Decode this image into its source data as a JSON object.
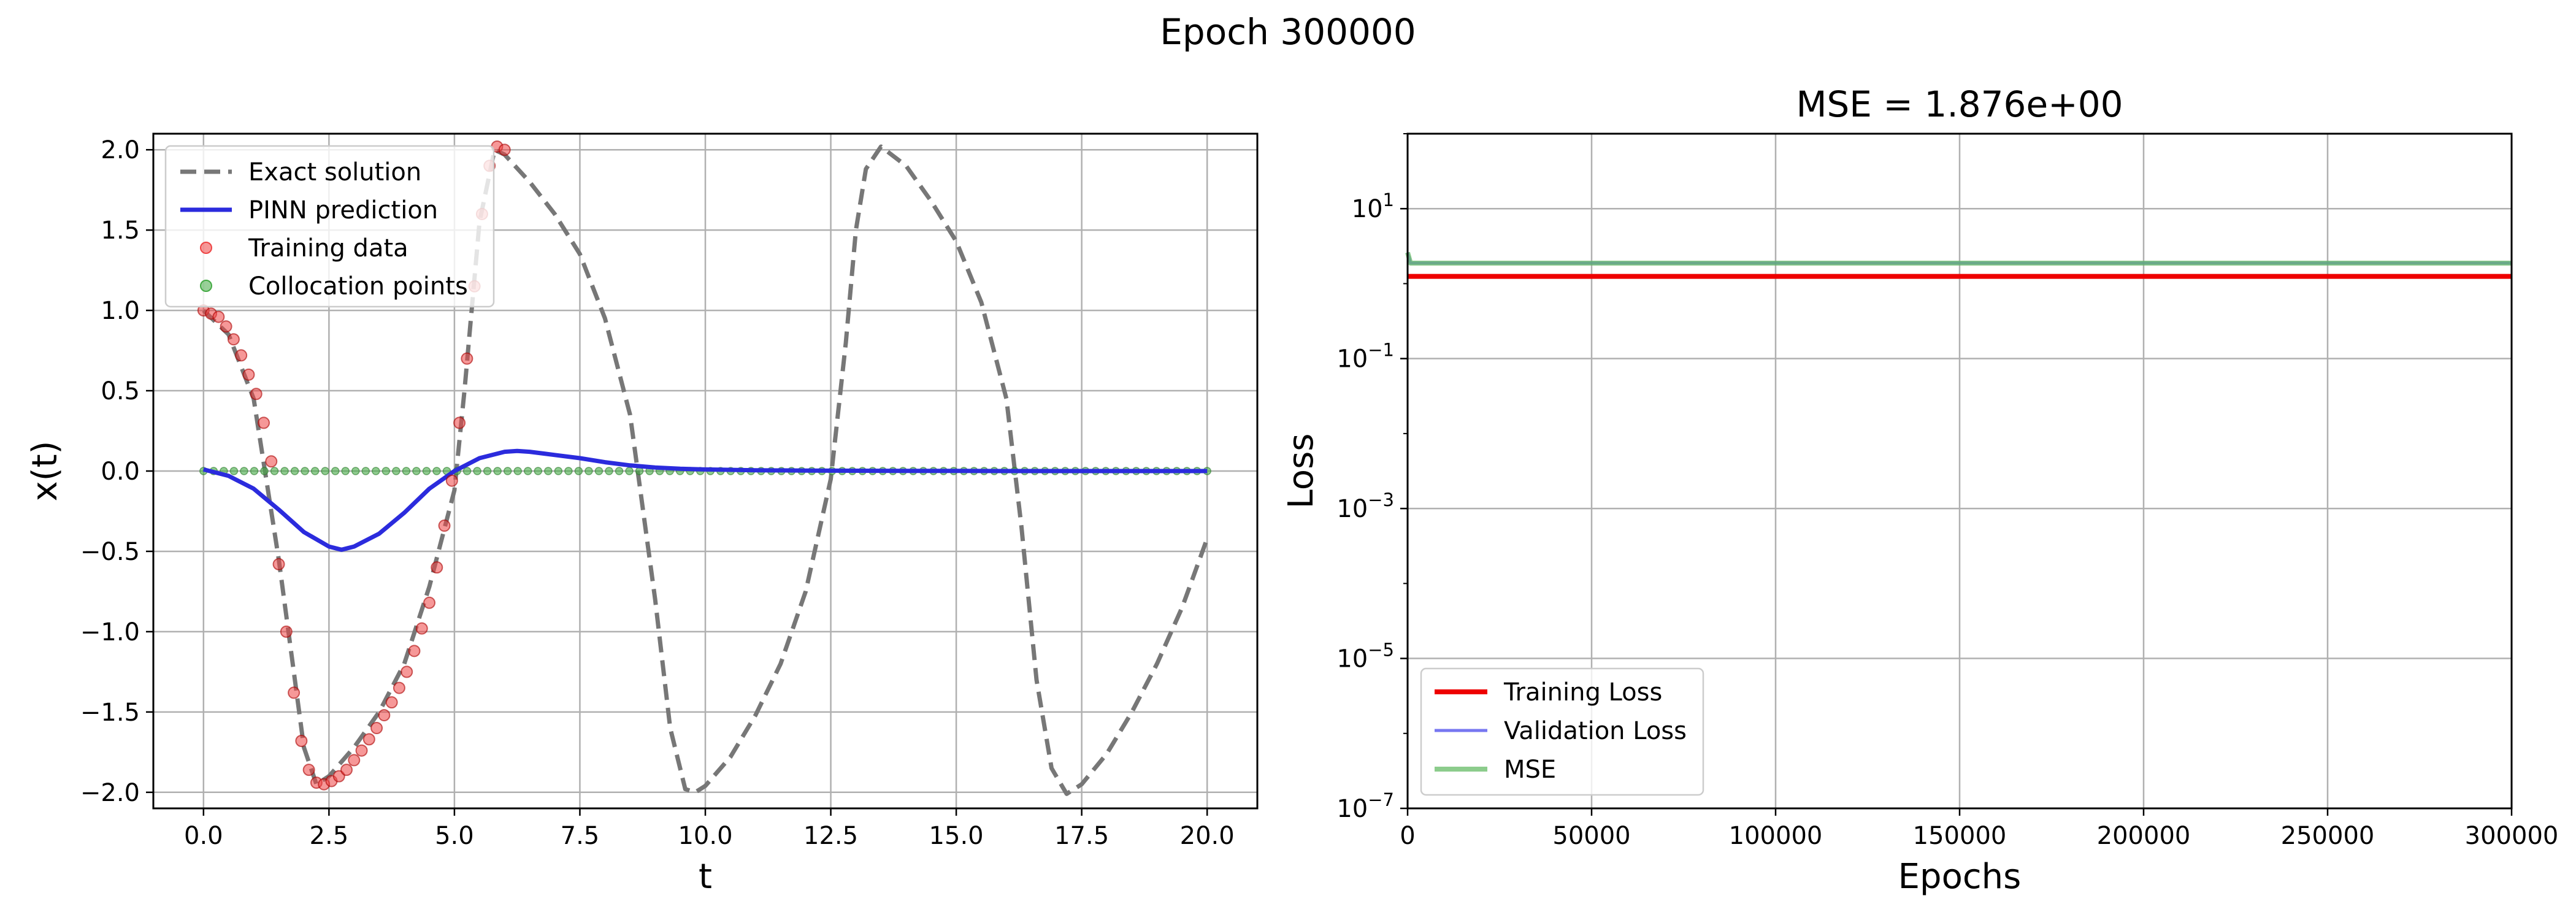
{
  "suptitle": "Epoch 300000",
  "chart_data": [
    {
      "type": "line",
      "title": "",
      "xlabel": "t",
      "ylabel": "x(t)",
      "xlim": [
        -1.0,
        21.0
      ],
      "ylim": [
        -2.1,
        2.1
      ],
      "xticks": [
        0,
        2.5,
        5,
        7.5,
        10,
        12.5,
        15,
        17.5,
        20
      ],
      "xtick_labels": [
        "0.0",
        "2.5",
        "5.0",
        "7.5",
        "10.0",
        "12.5",
        "15.0",
        "17.5",
        "20.0"
      ],
      "yticks": [
        -2,
        -1.5,
        -1,
        -0.5,
        0,
        0.5,
        1,
        1.5,
        2
      ],
      "ytick_labels": [
        "−2.0",
        "−1.5",
        "−1.0",
        "−0.5",
        "0.0",
        "0.5",
        "1.0",
        "1.5",
        "2.0"
      ],
      "grid": true,
      "legend": "top-left",
      "series": [
        {
          "name": "Exact solution",
          "style": "dashed",
          "color": "#777777",
          "x": [
            0,
            0.5,
            1,
            1.5,
            2,
            2.25,
            2.5,
            3,
            3.5,
            4,
            4.5,
            5,
            5.2,
            5.5,
            5.8,
            6,
            6.5,
            7,
            7.5,
            8,
            8.5,
            9,
            9.3,
            9.6,
            9.8,
            10,
            10.5,
            11,
            11.5,
            12,
            12.5,
            12.8,
            13,
            13.2,
            13.5,
            14,
            14.5,
            15,
            15.5,
            16,
            16.3,
            16.6,
            16.9,
            17.2,
            17.5,
            18,
            18.5,
            19,
            19.5,
            20
          ],
          "y": [
            1.0,
            0.85,
            0.45,
            -0.55,
            -1.72,
            -1.95,
            -1.9,
            -1.72,
            -1.5,
            -1.2,
            -0.72,
            -0.12,
            0.5,
            1.55,
            2.0,
            1.97,
            1.8,
            1.6,
            1.35,
            0.95,
            0.35,
            -0.8,
            -1.6,
            -1.98,
            -2.0,
            -1.96,
            -1.78,
            -1.52,
            -1.2,
            -0.75,
            -0.05,
            0.8,
            1.5,
            1.88,
            2.02,
            1.9,
            1.68,
            1.43,
            1.05,
            0.45,
            -0.35,
            -1.3,
            -1.85,
            -2.01,
            -1.95,
            -1.76,
            -1.5,
            -1.2,
            -0.85,
            -0.42
          ]
        },
        {
          "name": "PINN prediction",
          "style": "solid",
          "color": "#2b2bdd",
          "x": [
            0,
            0.5,
            1,
            1.5,
            2,
            2.5,
            2.75,
            3,
            3.5,
            4,
            4.5,
            5,
            5.5,
            6,
            6.25,
            6.5,
            7,
            7.5,
            8,
            8.5,
            9,
            9.5,
            10,
            11,
            12,
            13,
            14,
            15,
            16,
            17,
            18,
            19,
            20
          ],
          "y": [
            0.01,
            -0.03,
            -0.11,
            -0.24,
            -0.38,
            -0.47,
            -0.49,
            -0.47,
            -0.39,
            -0.26,
            -0.11,
            0.0,
            0.08,
            0.12,
            0.125,
            0.12,
            0.1,
            0.08,
            0.055,
            0.035,
            0.022,
            0.014,
            0.01,
            0.005,
            0.003,
            0.002,
            0.001,
            0.001,
            0.0,
            0.0,
            0.0,
            0.0,
            0.0
          ]
        },
        {
          "name": "Training data",
          "style": "markers",
          "color": "#ee4444",
          "x": [
            0,
            0.15,
            0.3,
            0.45,
            0.6,
            0.75,
            0.9,
            1.05,
            1.2,
            1.35,
            1.5,
            1.65,
            1.8,
            1.95,
            2.1,
            2.25,
            2.4,
            2.55,
            2.7,
            2.85,
            3.0,
            3.15,
            3.3,
            3.45,
            3.6,
            3.75,
            3.9,
            4.05,
            4.2,
            4.35,
            4.5,
            4.65,
            4.8,
            4.95,
            5.1,
            5.25,
            5.4,
            5.55,
            5.7,
            5.85,
            6.0
          ],
          "y": [
            1.0,
            0.98,
            0.96,
            0.9,
            0.82,
            0.72,
            0.6,
            0.48,
            0.3,
            0.06,
            -0.58,
            -1.0,
            -1.38,
            -1.68,
            -1.86,
            -1.94,
            -1.95,
            -1.93,
            -1.9,
            -1.86,
            -1.8,
            -1.74,
            -1.67,
            -1.6,
            -1.52,
            -1.44,
            -1.35,
            -1.25,
            -1.12,
            -0.98,
            -0.82,
            -0.6,
            -0.34,
            -0.06,
            0.3,
            0.7,
            1.15,
            1.6,
            1.9,
            2.02,
            2.0
          ]
        },
        {
          "name": "Collocation points",
          "style": "markers",
          "color": "#44aa44",
          "x_start": 0,
          "x_end": 20,
          "count": 100,
          "y_value": 0.0
        }
      ]
    },
    {
      "type": "line",
      "title": "MSE = 1.876e+00",
      "xlabel": "Epochs",
      "ylabel": "Loss",
      "yscale": "log",
      "xlim": [
        0,
        300000
      ],
      "ylim_exp": [
        -7,
        2
      ],
      "xticks": [
        0,
        50000,
        100000,
        150000,
        200000,
        250000,
        300000
      ],
      "xtick_labels": [
        "0",
        "50000",
        "100000",
        "150000",
        "200000",
        "250000",
        "300000"
      ],
      "yticks_exp": [
        -7,
        -5,
        -3,
        -1,
        1
      ],
      "ytick_base": "10",
      "ytick_exponents": [
        "−7",
        "−5",
        "−3",
        "−1",
        "1"
      ],
      "grid": true,
      "legend": "bottom-left",
      "series": [
        {
          "name": "Training Loss",
          "color": "#ee0000",
          "style": "solid",
          "x": [
            0,
            300000
          ],
          "y": [
            1.25,
            1.25
          ]
        },
        {
          "name": "Validation Loss",
          "color": "#5555ee",
          "style": "solid",
          "x": [
            0,
            800,
            300000
          ],
          "y": [
            2.6,
            1.88,
            1.88
          ]
        },
        {
          "name": "MSE",
          "color": "#66bb66",
          "style": "solid",
          "x": [
            0,
            800,
            300000
          ],
          "y": [
            2.6,
            1.876,
            1.876
          ]
        }
      ]
    }
  ]
}
